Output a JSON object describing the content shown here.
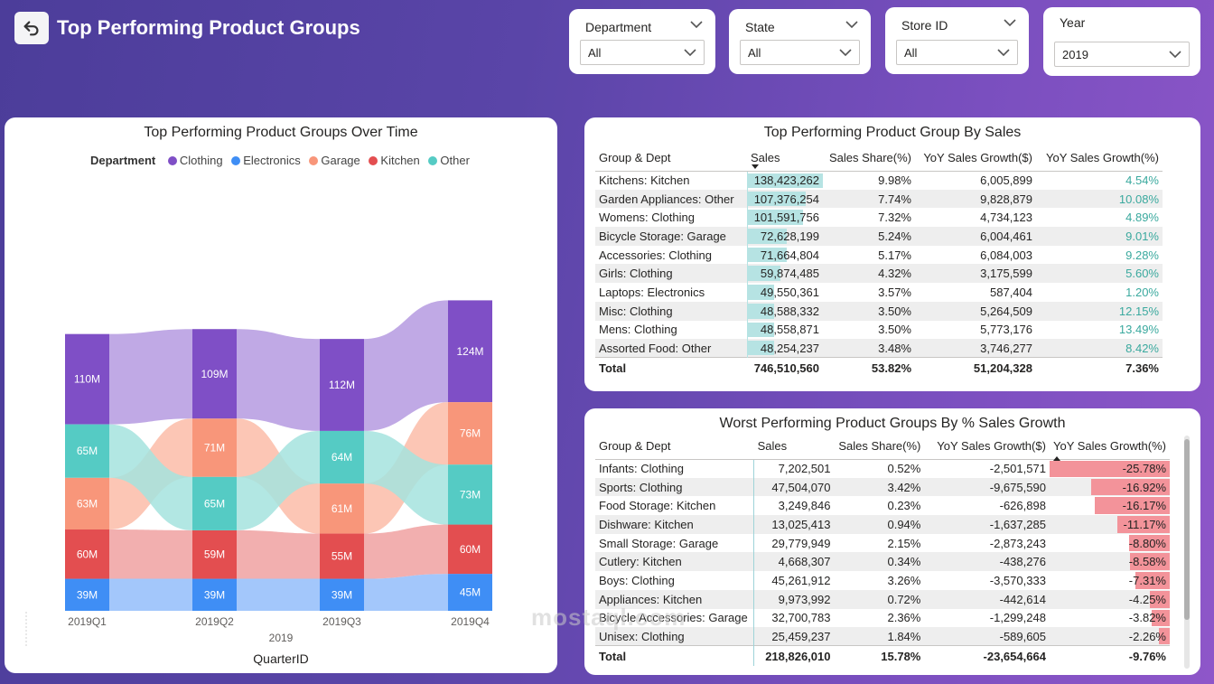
{
  "header": {
    "title": "Top Performing Product Groups"
  },
  "slicers": [
    {
      "title": "Department",
      "value": "All"
    },
    {
      "title": "State",
      "value": "All"
    },
    {
      "title": "Store ID",
      "value": "All"
    },
    {
      "title": "Year",
      "value": "2019"
    }
  ],
  "ribbon": {
    "title": "Top Performing Product Groups Over Time",
    "legend_title": "Department",
    "legend": [
      {
        "name": "Clothing",
        "color": "#7f4fc6"
      },
      {
        "name": "Electronics",
        "color": "#3f8ef5"
      },
      {
        "name": "Garage",
        "color": "#f8967a"
      },
      {
        "name": "Kitchen",
        "color": "#e34e50"
      },
      {
        "name": "Other",
        "color": "#55cbc4"
      }
    ],
    "xlabel": "QuarterID",
    "year_label": "2019"
  },
  "chart_data": {
    "type": "ribbon",
    "categories": [
      "2019Q1",
      "2019Q2",
      "2019Q3",
      "2019Q4"
    ],
    "stack_bottom_to_top": [
      [
        "Electronics",
        "Kitchen",
        "Garage",
        "Other",
        "Clothing"
      ],
      [
        "Electronics",
        "Kitchen",
        "Other",
        "Garage",
        "Clothing"
      ],
      [
        "Electronics",
        "Kitchen",
        "Garage",
        "Other",
        "Clothing"
      ],
      [
        "Electronics",
        "Kitchen",
        "Other",
        "Garage",
        "Clothing"
      ]
    ],
    "series": [
      {
        "name": "Clothing",
        "values": [
          110,
          109,
          112,
          124
        ],
        "labels": [
          "110M",
          "109M",
          "112M",
          "124M"
        ]
      },
      {
        "name": "Electronics",
        "values": [
          39,
          39,
          39,
          45
        ],
        "labels": [
          "39M",
          "39M",
          "39M",
          "45M"
        ]
      },
      {
        "name": "Garage",
        "values": [
          63,
          71,
          61,
          76
        ],
        "labels": [
          "63M",
          "71M",
          "61M",
          "76M"
        ]
      },
      {
        "name": "Kitchen",
        "values": [
          60,
          59,
          55,
          60
        ],
        "labels": [
          "60M",
          "59M",
          "55M",
          "60M"
        ]
      },
      {
        "name": "Other",
        "values": [
          65,
          65,
          64,
          73
        ],
        "labels": [
          "65M",
          "65M",
          "64M",
          "73M"
        ]
      }
    ]
  },
  "top_table": {
    "title": "Top Performing Product Group By Sales",
    "headers": [
      "Group & Dept",
      "Sales",
      "Sales Share(%)",
      "YoY Sales Growth($)",
      "YoY Sales Growth(%)"
    ],
    "rows": [
      {
        "group": "Kitchens: Kitchen",
        "sales": "138,423,262",
        "share": "9.98%",
        "growth_usd": "6,005,899",
        "growth_pct": "4.54%",
        "sales_value": 138423262
      },
      {
        "group": "Garden Appliances: Other",
        "sales": "107,376,254",
        "share": "7.74%",
        "growth_usd": "9,828,879",
        "growth_pct": "10.08%",
        "sales_value": 107376254
      },
      {
        "group": "Womens: Clothing",
        "sales": "101,591,756",
        "share": "7.32%",
        "growth_usd": "4,734,123",
        "growth_pct": "4.89%",
        "sales_value": 101591756
      },
      {
        "group": "Bicycle Storage: Garage",
        "sales": "72,628,199",
        "share": "5.24%",
        "growth_usd": "6,004,461",
        "growth_pct": "9.01%",
        "sales_value": 72628199
      },
      {
        "group": "Accessories: Clothing",
        "sales": "71,664,804",
        "share": "5.17%",
        "growth_usd": "6,084,003",
        "growth_pct": "9.28%",
        "sales_value": 71664804
      },
      {
        "group": "Girls: Clothing",
        "sales": "59,874,485",
        "share": "4.32%",
        "growth_usd": "3,175,599",
        "growth_pct": "5.60%",
        "sales_value": 59874485
      },
      {
        "group": "Laptops: Electronics",
        "sales": "49,550,361",
        "share": "3.57%",
        "growth_usd": "587,404",
        "growth_pct": "1.20%",
        "sales_value": 49550361
      },
      {
        "group": "Misc: Clothing",
        "sales": "48,588,332",
        "share": "3.50%",
        "growth_usd": "5,264,509",
        "growth_pct": "12.15%",
        "sales_value": 48588332
      },
      {
        "group": "Mens: Clothing",
        "sales": "48,558,871",
        "share": "3.50%",
        "growth_usd": "5,773,176",
        "growth_pct": "13.49%",
        "sales_value": 48558871
      },
      {
        "group": "Assorted Food: Other",
        "sales": "48,254,237",
        "share": "3.48%",
        "growth_usd": "3,746,277",
        "growth_pct": "8.42%",
        "sales_value": 48254237
      }
    ],
    "total": {
      "group": "Total",
      "sales": "746,510,560",
      "share": "53.82%",
      "growth_usd": "51,204,328",
      "growth_pct": "7.36%"
    }
  },
  "worst_table": {
    "title": "Worst Performing Product Groups By % Sales Growth",
    "headers": [
      "Group & Dept",
      "Sales",
      "Sales Share(%)",
      "YoY Sales Growth($)",
      "YoY Sales Growth(%)"
    ],
    "rows": [
      {
        "group": "Infants: Clothing",
        "sales": "7,202,501",
        "share": "0.52%",
        "growth_usd": "-2,501,571",
        "growth_pct": "-25.78%",
        "growth_value": -25.78
      },
      {
        "group": "Sports: Clothing",
        "sales": "47,504,070",
        "share": "3.42%",
        "growth_usd": "-9,675,590",
        "growth_pct": "-16.92%",
        "growth_value": -16.92
      },
      {
        "group": "Food Storage: Kitchen",
        "sales": "3,249,846",
        "share": "0.23%",
        "growth_usd": "-626,898",
        "growth_pct": "-16.17%",
        "growth_value": -16.17
      },
      {
        "group": "Dishware: Kitchen",
        "sales": "13,025,413",
        "share": "0.94%",
        "growth_usd": "-1,637,285",
        "growth_pct": "-11.17%",
        "growth_value": -11.17
      },
      {
        "group": "Small Storage: Garage",
        "sales": "29,779,949",
        "share": "2.15%",
        "growth_usd": "-2,873,243",
        "growth_pct": "-8.80%",
        "growth_value": -8.8
      },
      {
        "group": "Cutlery: Kitchen",
        "sales": "4,668,307",
        "share": "0.34%",
        "growth_usd": "-438,276",
        "growth_pct": "-8.58%",
        "growth_value": -8.58
      },
      {
        "group": "Boys: Clothing",
        "sales": "45,261,912",
        "share": "3.26%",
        "growth_usd": "-3,570,333",
        "growth_pct": "-7.31%",
        "growth_value": -7.31
      },
      {
        "group": "Appliances: Kitchen",
        "sales": "9,973,992",
        "share": "0.72%",
        "growth_usd": "-442,614",
        "growth_pct": "-4.25%",
        "growth_value": -4.25
      },
      {
        "group": "Bicycle Accessories: Garage",
        "sales": "32,700,783",
        "share": "2.36%",
        "growth_usd": "-1,299,248",
        "growth_pct": "-3.82%",
        "growth_value": -3.82
      },
      {
        "group": "Unisex: Clothing",
        "sales": "25,459,237",
        "share": "1.84%",
        "growth_usd": "-589,605",
        "growth_pct": "-2.26%",
        "growth_value": -2.26
      }
    ],
    "total": {
      "group": "Total",
      "sales": "218,826,010",
      "share": "15.78%",
      "growth_usd": "-23,654,664",
      "growth_pct": "-9.76%"
    }
  },
  "watermark": "mostaql.com"
}
